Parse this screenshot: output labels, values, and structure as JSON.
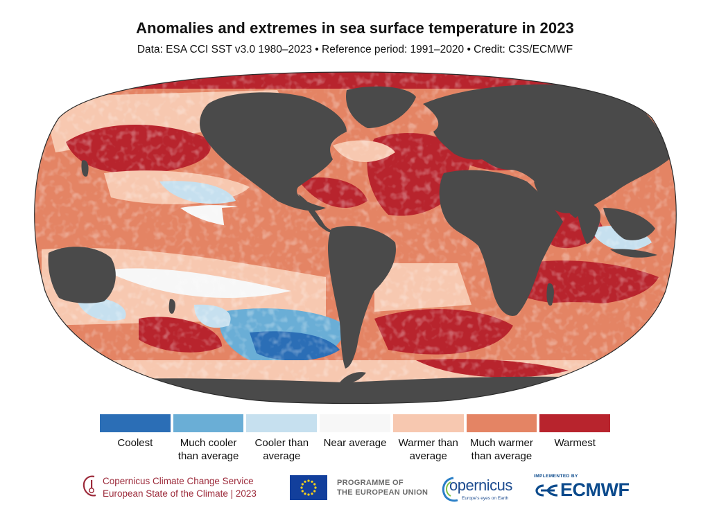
{
  "title": "Anomalies and extremes in sea surface temperature in 2023",
  "subtitle": "Data: ESA CCI SST v3.0 1980–2023 • Reference period: 1991–2020 • Credit: C3S/ECMWF",
  "legend": [
    {
      "label": "Coolest",
      "color": "#2b6eb6"
    },
    {
      "label": "Much cooler than average",
      "color": "#6aaed6"
    },
    {
      "label": "Cooler than average",
      "color": "#c6e0ef"
    },
    {
      "label": "Near average",
      "color": "#f7f7f7"
    },
    {
      "label": "Warmer than average",
      "color": "#f7c8b0"
    },
    {
      "label": "Much warmer than average",
      "color": "#e48464"
    },
    {
      "label": "Warmest",
      "color": "#b8242d"
    }
  ],
  "colors": {
    "land": "#4a4a4a",
    "ocean_base": "#e48464"
  },
  "footer": {
    "c3s_line1": "Copernicus Climate Change Service",
    "c3s_line2": "European State of the Climate | 2023",
    "eu_line1": "PROGRAMME OF",
    "eu_line2": "THE EUROPEAN UNION",
    "copernicus": "opernicus",
    "copernicus_tagline": "Europe's eyes on Earth",
    "implemented_by": "IMPLEMENTED BY",
    "ecmwf": "ECMWF"
  }
}
